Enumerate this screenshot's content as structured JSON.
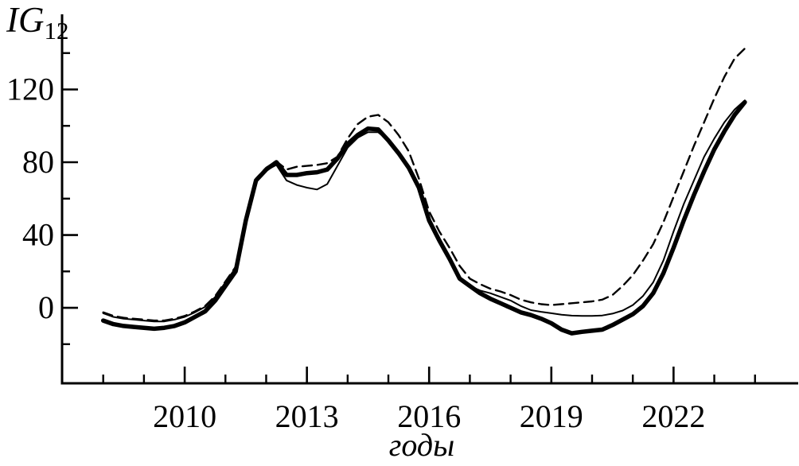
{
  "page": {
    "background": "#ffffff",
    "ink_color": "#000000"
  },
  "chart_data": {
    "type": "line",
    "title": "",
    "xlabel": "годы",
    "ylabel": "IG12",
    "ylabel_main": "IG",
    "ylabel_sub": "12",
    "grid": false,
    "legend": "none",
    "xlim": [
      2006.99,
      2025.06
    ],
    "ylim": [
      -41.5,
      161.3
    ],
    "x_ticks_major": [
      2010,
      2013,
      2016,
      2019,
      2022
    ],
    "x_ticks_minor": [
      2008,
      2009,
      2011,
      2012,
      2014,
      2015,
      2017,
      2018,
      2020,
      2021,
      2023,
      2024
    ],
    "y_ticks_major": [
      0,
      40,
      80,
      120
    ],
    "y_ticks_minor": [
      -20,
      20,
      60,
      100,
      140
    ],
    "x": [
      2008,
      2008.25,
      2008.5,
      2008.75,
      2009,
      2009.25,
      2009.5,
      2009.75,
      2010,
      2010.25,
      2010.5,
      2010.75,
      2011,
      2011.25,
      2011.5,
      2011.75,
      2012,
      2012.25,
      2012.5,
      2012.75,
      2013,
      2013.25,
      2013.5,
      2013.75,
      2014,
      2014.25,
      2014.5,
      2014.75,
      2015,
      2015.25,
      2015.5,
      2015.75,
      2016,
      2016.25,
      2016.5,
      2016.75,
      2017,
      2017.25,
      2017.5,
      2017.75,
      2018,
      2018.25,
      2018.5,
      2018.75,
      2019,
      2019.25,
      2019.5,
      2019.75,
      2020,
      2020.25,
      2020.5,
      2020.75,
      2021,
      2021.25,
      2021.5,
      2021.75,
      2022,
      2022.25,
      2022.5,
      2022.75,
      2023,
      2023.25,
      2023.5,
      2023.75
    ],
    "series": [
      {
        "id": "bold-solid",
        "style": {
          "stroke": "solid",
          "width": "thick"
        },
        "values": [
          -7,
          -9,
          -10,
          -10.5,
          -11,
          -11.5,
          -11,
          -10,
          -8,
          -5,
          -2,
          4,
          12,
          20,
          48,
          70,
          76,
          80,
          73,
          73,
          74,
          74.5,
          76,
          82,
          90,
          95,
          98.5,
          98,
          92,
          85,
          77,
          66,
          48,
          37,
          27,
          16,
          12,
          8,
          5,
          2.5,
          0,
          -2.5,
          -4,
          -6,
          -8.5,
          -12,
          -14,
          -13.2,
          -12.6,
          -12,
          -9.5,
          -6.5,
          -3.5,
          1,
          8,
          19,
          33,
          48,
          62,
          75,
          87,
          97,
          106,
          113
        ]
      },
      {
        "id": "thin-solid",
        "style": {
          "stroke": "solid",
          "width": "thin"
        },
        "values": [
          -3,
          -5,
          -6,
          -6.5,
          -7,
          -7.5,
          -7.5,
          -6.5,
          -5,
          -2.5,
          0.5,
          6,
          14,
          22,
          49,
          70.5,
          75.5,
          78.5,
          70,
          67.5,
          66,
          65,
          68,
          78,
          88,
          93.5,
          96.5,
          96.5,
          92,
          85,
          77,
          66,
          48,
          37,
          27,
          16.5,
          12,
          9.5,
          8,
          6,
          4,
          1,
          -1.3,
          -2.2,
          -3,
          -3.8,
          -4.3,
          -4.5,
          -4.5,
          -4.2,
          -3.2,
          -1.5,
          1.5,
          6.5,
          14,
          26,
          42,
          57,
          70,
          83,
          93,
          102,
          109,
          114
        ]
      },
      {
        "id": "dashed",
        "style": {
          "stroke": "dashed",
          "width": "thin"
        },
        "values": [
          -2.5,
          -4.5,
          -5.5,
          -6,
          -6.5,
          -7,
          -7,
          -6,
          -4.5,
          -2,
          1,
          6.5,
          14.5,
          22.5,
          49,
          71,
          77,
          80.5,
          76,
          77.5,
          78,
          78.5,
          79.5,
          83,
          93,
          101,
          105,
          106,
          102,
          95,
          86,
          71,
          53,
          42,
          33,
          23,
          16,
          13,
          10.5,
          9,
          7,
          4.5,
          3,
          2,
          1.5,
          2,
          2.5,
          3,
          3.5,
          4.5,
          7,
          12,
          18,
          26,
          35,
          47,
          61,
          75,
          89,
          102,
          115,
          127,
          137,
          142.5
        ]
      }
    ]
  }
}
